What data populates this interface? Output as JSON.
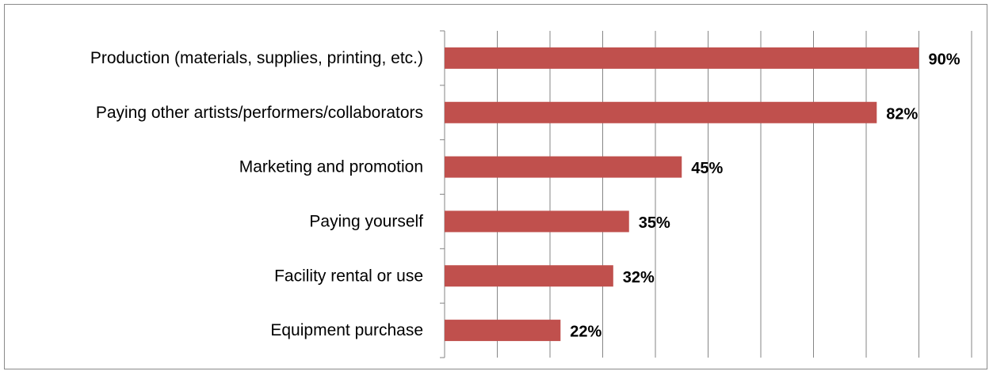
{
  "chart_data": {
    "type": "bar",
    "orientation": "horizontal",
    "categories": [
      "Production (materials, supplies, printing, etc.)",
      "Paying other artists/performers/collaborators",
      "Marketing and promotion",
      "Paying yourself",
      "Facility rental or use",
      "Equipment purchase"
    ],
    "values": [
      90,
      82,
      45,
      35,
      32,
      22
    ],
    "data_labels": [
      "90%",
      "82%",
      "45%",
      "35%",
      "32%",
      "22%"
    ],
    "xlim": [
      0,
      100
    ],
    "x_gridline_step": 10,
    "grid": true,
    "legend": "none",
    "title": "",
    "xlabel": "",
    "ylabel": "",
    "colors": {
      "bar": "#c0504d",
      "gridline": "#868686",
      "frame": "#8a8a8a",
      "text": "#000000"
    }
  }
}
